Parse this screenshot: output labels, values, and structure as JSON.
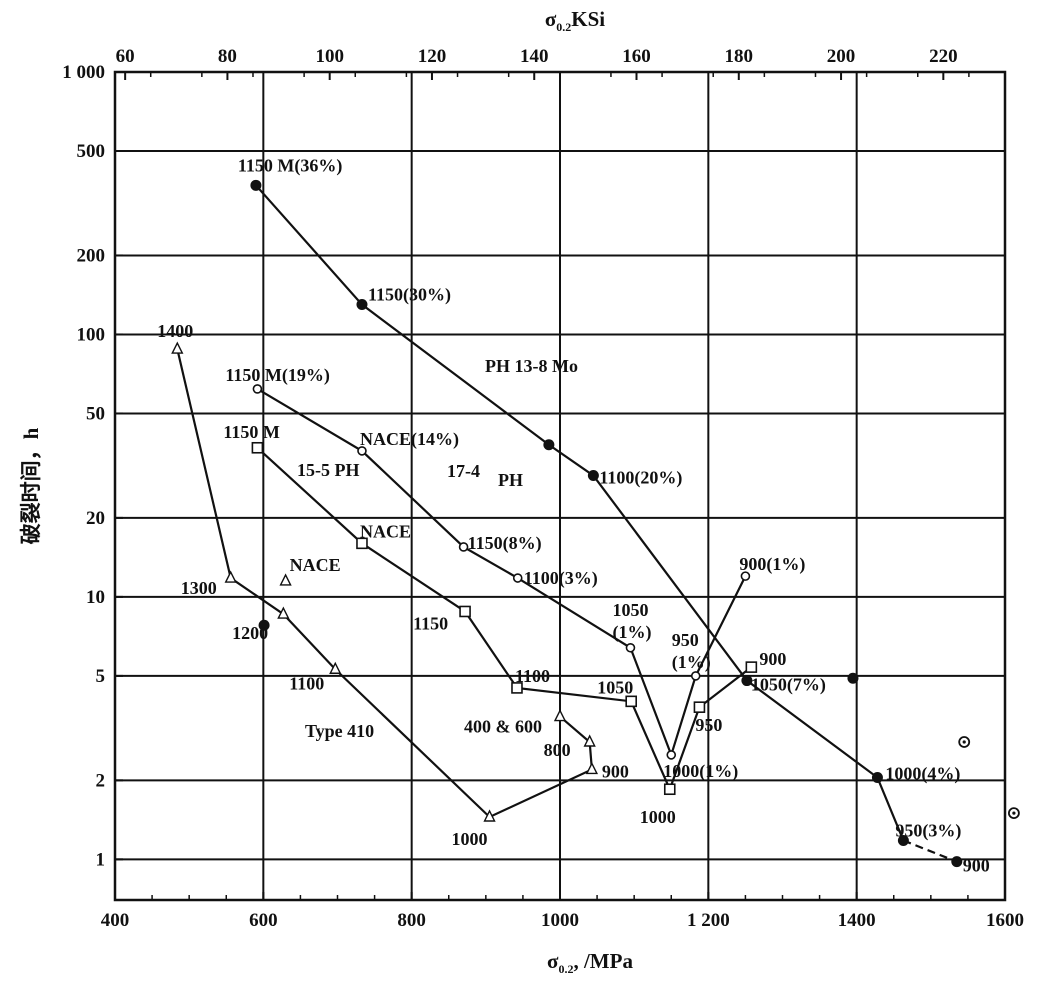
{
  "chart_data": {
    "type": "line",
    "x_axis_bottom": {
      "label_main": "σ",
      "label_sub": "0.2",
      "label_tail": ", /MPa",
      "range": [
        400,
        1600
      ],
      "ticks": [
        "400",
        "600",
        "800",
        "1000",
        "1 200",
        "1400",
        "1600"
      ],
      "tick_values": [
        400,
        600,
        800,
        1000,
        1200,
        1400,
        1600
      ]
    },
    "x_axis_top": {
      "label_main": "σ",
      "label_sub": "0.2",
      "label_tail": "KSi",
      "ticks": [
        "60",
        "80",
        "100",
        "120",
        "140",
        "160",
        "180",
        "200",
        "220"
      ],
      "tick_values": [
        60,
        80,
        100,
        120,
        140,
        160,
        180,
        200,
        220
      ]
    },
    "y_axis": {
      "label": "破裂时间，h",
      "scale": "log",
      "range": [
        0.7,
        1000
      ],
      "ticks": [
        "1",
        "2",
        "5",
        "10",
        "20",
        "50",
        "100",
        "200",
        "500",
        "1 000"
      ],
      "tick_values": [
        1,
        2,
        5,
        10,
        20,
        50,
        100,
        200,
        500,
        1000
      ]
    },
    "grid": true,
    "series": [
      {
        "name": "PH 13-8 Mo",
        "marker": "filled-circle",
        "points": [
          {
            "x": 590,
            "y": 370,
            "label": "1150 M(36%)"
          },
          {
            "x": 733,
            "y": 130,
            "label": "1150(30%)"
          },
          {
            "x": 985,
            "y": 38,
            "label": ""
          },
          {
            "x": 1045,
            "y": 29,
            "label": "1100(20%)"
          },
          {
            "x": 1252,
            "y": 4.8,
            "label": "1050(7%)"
          },
          {
            "x": 1428,
            "y": 2.05,
            "label": "1000(4%)"
          },
          {
            "x": 1463,
            "y": 1.18,
            "label": "950(3%)"
          }
        ]
      },
      {
        "name": "",
        "marker": "filled-circle",
        "dashed": true,
        "points": [
          {
            "x": 1463,
            "y": 1.18,
            "label": ""
          },
          {
            "x": 1535,
            "y": 0.98,
            "label": "900"
          }
        ]
      },
      {
        "name": "17-4 PH",
        "marker": "open-circle",
        "points": [
          {
            "x": 592,
            "y": 62,
            "label": "1150 M(19%)"
          },
          {
            "x": 733,
            "y": 36,
            "label": "NACE(14%)"
          },
          {
            "x": 870,
            "y": 15.5,
            "label": "1150(8%)"
          },
          {
            "x": 943,
            "y": 11.8,
            "label": "1100(3%)"
          },
          {
            "x": 1095,
            "y": 6.4,
            "label": "1050\n(1%)"
          },
          {
            "x": 1150,
            "y": 2.5,
            "label": "1000(1%)"
          },
          {
            "x": 1183,
            "y": 5.0,
            "label": "950\n(1%)"
          },
          {
            "x": 1250,
            "y": 12,
            "label": "900(1%)"
          }
        ]
      },
      {
        "name": "15-5 PH",
        "marker": "open-square",
        "points": [
          {
            "x": 592,
            "y": 37,
            "label": "1150 M"
          },
          {
            "x": 733,
            "y": 16,
            "label": "NACE"
          },
          {
            "x": 872,
            "y": 8.8,
            "label": "1150"
          },
          {
            "x": 942,
            "y": 4.5,
            "label": "1100"
          },
          {
            "x": 1096,
            "y": 4.0,
            "label": "1050"
          },
          {
            "x": 1148,
            "y": 1.85,
            "label": "1000"
          },
          {
            "x": 1188,
            "y": 3.8,
            "label": "950"
          },
          {
            "x": 1258,
            "y": 5.4,
            "label": "900"
          }
        ]
      },
      {
        "name": "Type 410",
        "marker": "open-triangle",
        "points": [
          {
            "x": 484,
            "y": 88,
            "label": "1400"
          },
          {
            "x": 556,
            "y": 11.8,
            "label": "1300"
          },
          {
            "x": 627,
            "y": 8.6,
            "label": ""
          },
          {
            "x": 697,
            "y": 5.3,
            "label": "1100"
          },
          {
            "x": 905,
            "y": 1.45,
            "label": "1000"
          },
          {
            "x": 1043,
            "y": 2.2,
            "label": "900"
          },
          {
            "x": 1040,
            "y": 2.8,
            "label": "800"
          },
          {
            "x": 1000,
            "y": 3.5,
            "label": "400 & 600"
          }
        ]
      }
    ],
    "isolated_points": [
      {
        "x": 630,
        "y": 11.5,
        "marker": "open-triangle",
        "label": "NACE"
      },
      {
        "x": 601,
        "y": 7.8,
        "marker": "filled-circle",
        "label": "1200"
      },
      {
        "x": 1395,
        "y": 4.9,
        "marker": "filled-circle",
        "label": ""
      },
      {
        "x": 1545,
        "y": 2.8,
        "marker": "open-circle-dot",
        "label": ""
      },
      {
        "x": 1612,
        "y": 1.5,
        "marker": "open-circle-dot",
        "label": ""
      }
    ]
  }
}
